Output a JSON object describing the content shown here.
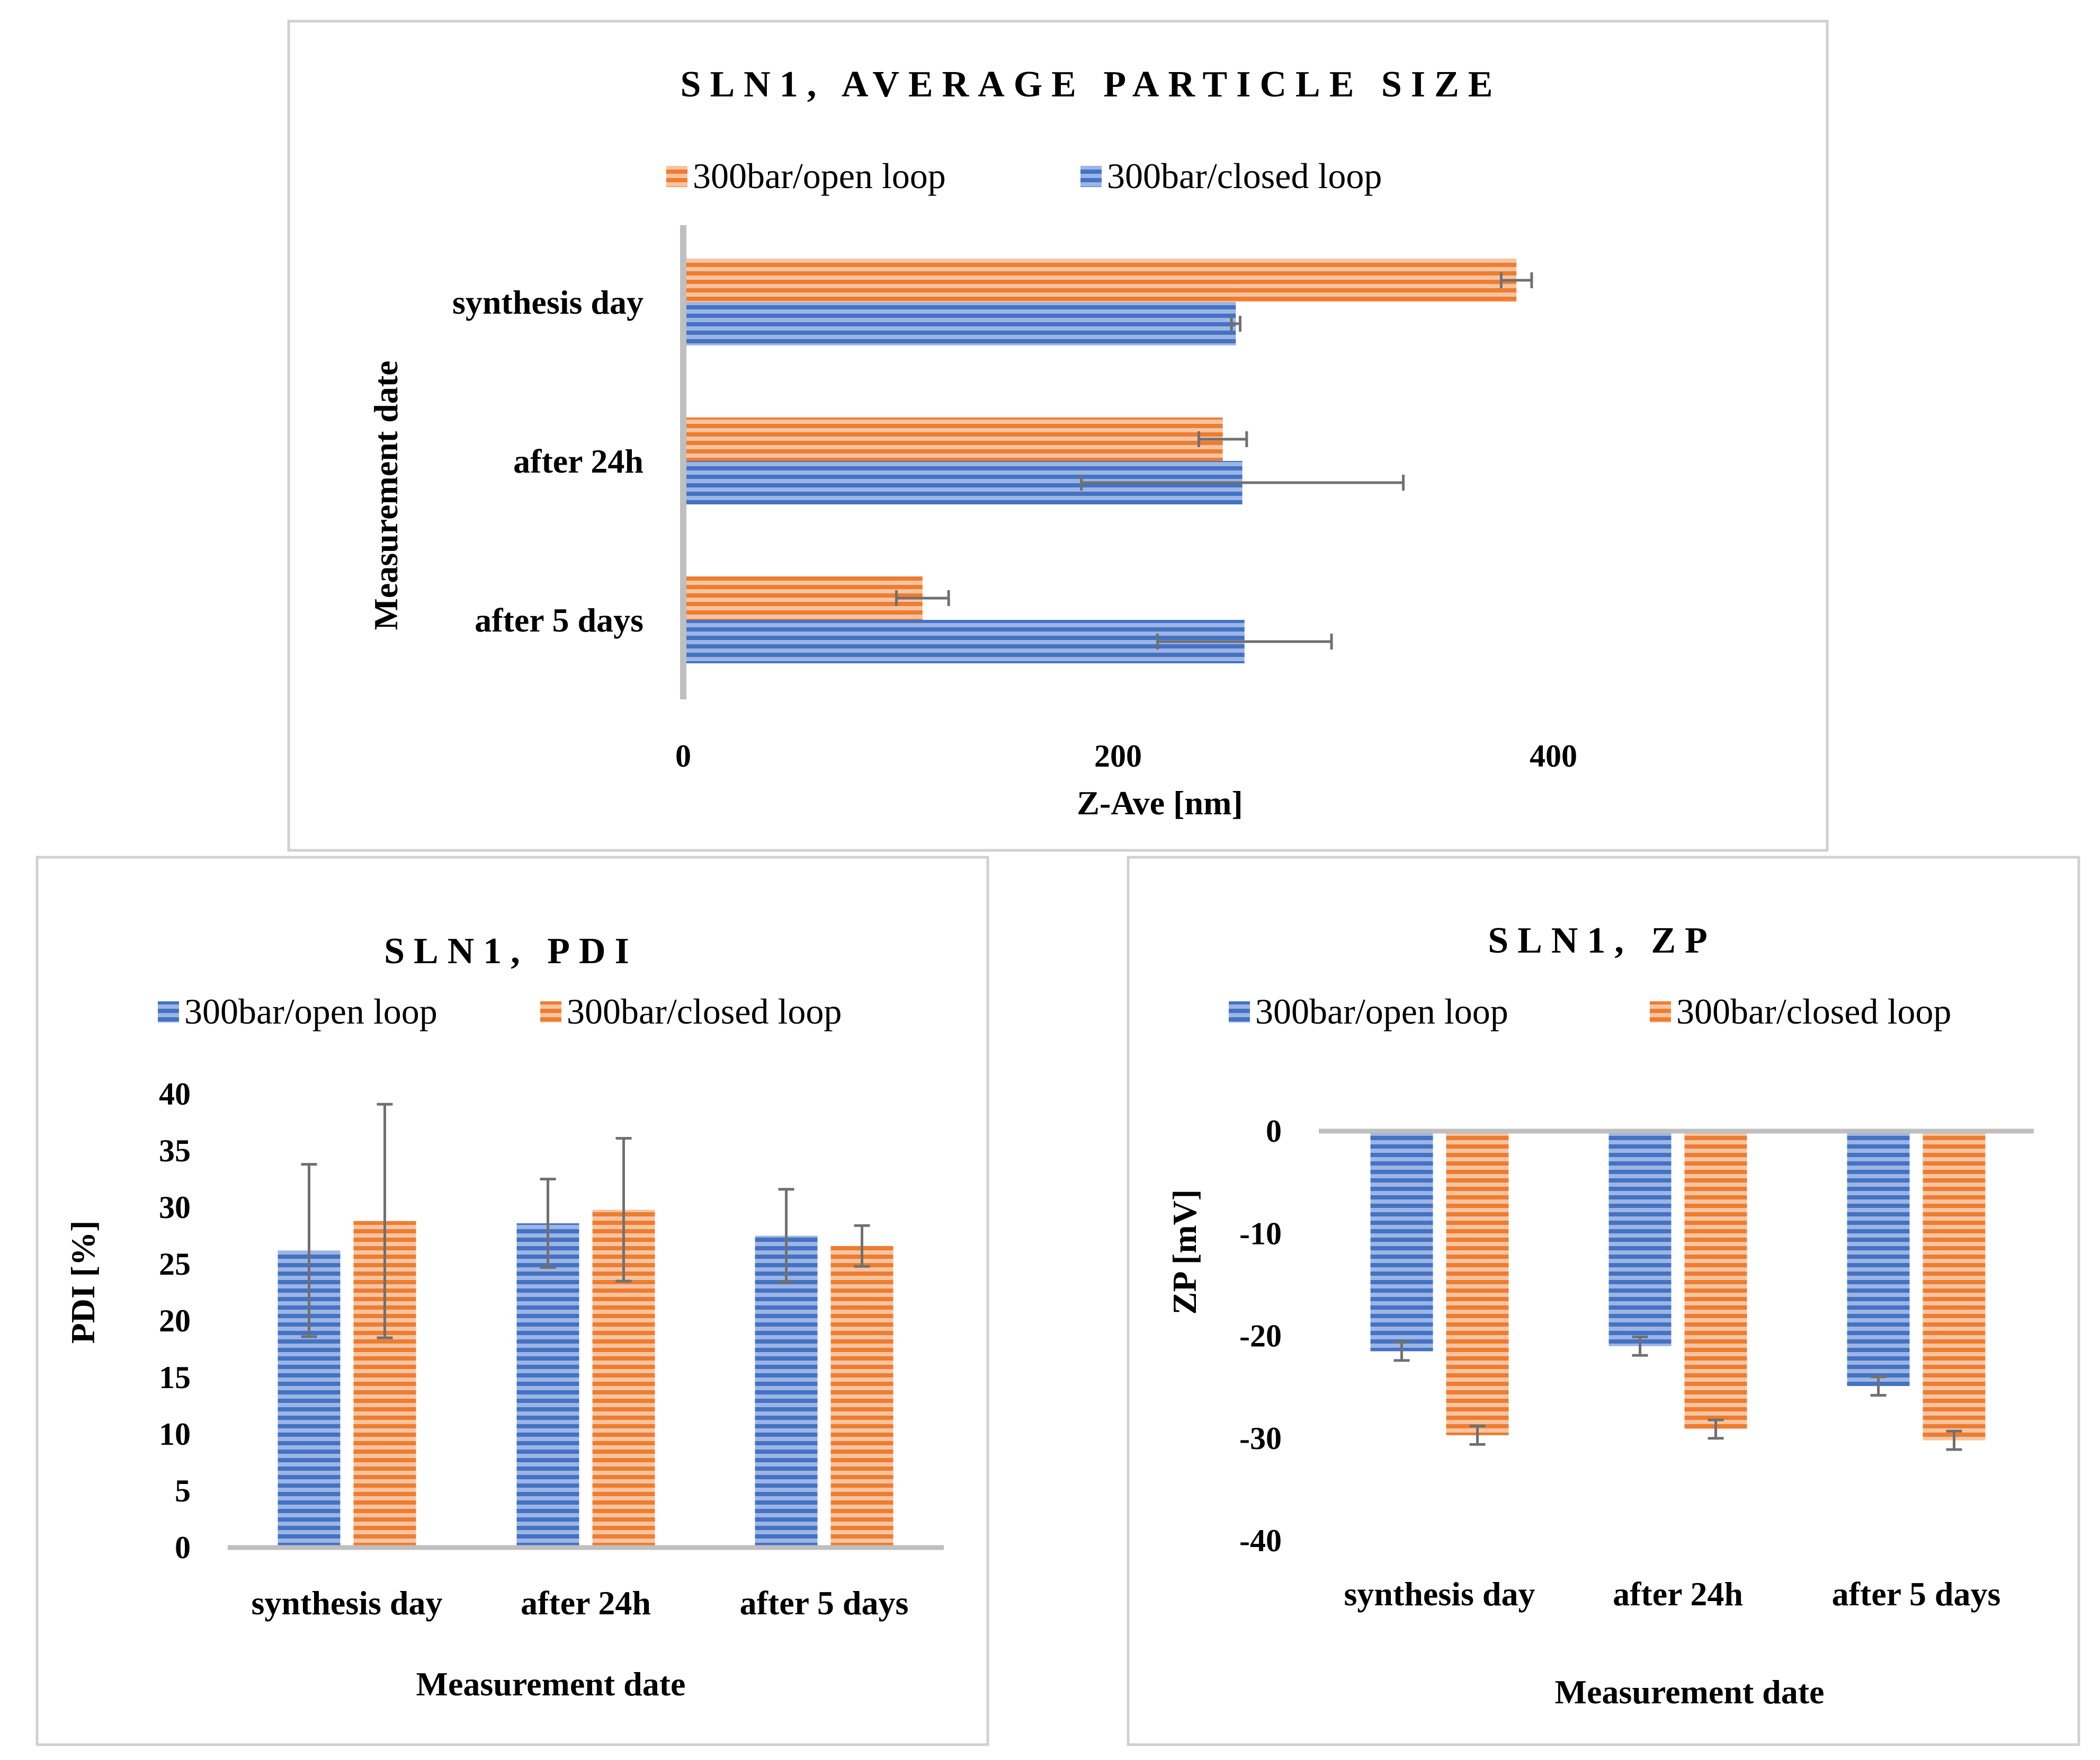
{
  "colors": {
    "blue": "#4472C4",
    "orange": "#ED7D31",
    "errbar": "#707070",
    "axis": "#BFBFBF"
  },
  "chart_data": [
    {
      "type": "bar",
      "orientation": "horizontal",
      "title": "SLN1, AVERAGE PARTICLE SIZE",
      "categories": [
        "synthesis day",
        "after 24h",
        "after 5 days"
      ],
      "series": [
        {
          "name": "300bar/open loop",
          "color": "orange",
          "values": [
            383,
            248,
            110
          ],
          "errors": [
            7,
            11,
            12
          ]
        },
        {
          "name": "300bar/closed loop",
          "color": "blue",
          "values": [
            254,
            257,
            258
          ],
          "errors": [
            2,
            74,
            40
          ]
        }
      ],
      "legend_order": [
        0,
        1
      ],
      "xlabel": "Z-Ave [nm]",
      "ylabel": "Measurement date",
      "xlim": [
        0,
        400
      ],
      "ticks": [
        0,
        200,
        400
      ]
    },
    {
      "type": "bar",
      "title": "SLN1, PDI",
      "categories": [
        "synthesis day",
        "after 24h",
        "after 5 days"
      ],
      "series": [
        {
          "name": "300bar/open loop",
          "color": "blue",
          "values": [
            26.2,
            28.6,
            27.5
          ],
          "errors": [
            7.6,
            3.9,
            4.1
          ]
        },
        {
          "name": "300bar/closed loop",
          "color": "orange",
          "values": [
            28.8,
            29.8,
            26.6
          ],
          "errors": [
            10.3,
            6.3,
            1.8
          ]
        }
      ],
      "legend_order": [
        0,
        1
      ],
      "xlabel": "Measurement date",
      "ylabel": "PDI [%]",
      "ylim": [
        0,
        40
      ],
      "ticks": [
        0,
        5,
        10,
        15,
        20,
        25,
        30,
        35,
        40
      ]
    },
    {
      "type": "bar",
      "title": "SLN1, ZP",
      "categories": [
        "synthesis day",
        "after 24h",
        "after 5 days"
      ],
      "series": [
        {
          "name": "300bar/open loop",
          "color": "blue",
          "values": [
            -21.5,
            -21.0,
            -24.9
          ],
          "errors": [
            0.9,
            0.9,
            0.9
          ]
        },
        {
          "name": "300bar/closed loop",
          "color": "orange",
          "values": [
            -29.7,
            -29.1,
            -30.2
          ],
          "errors": [
            0.9,
            0.9,
            0.9
          ]
        }
      ],
      "legend_order": [
        0,
        1
      ],
      "xlabel": "Measurement date",
      "ylabel": "ZP [mV]",
      "ylim": [
        -40,
        0
      ],
      "ticks": [
        0,
        -10,
        -20,
        -30,
        -40
      ]
    }
  ]
}
